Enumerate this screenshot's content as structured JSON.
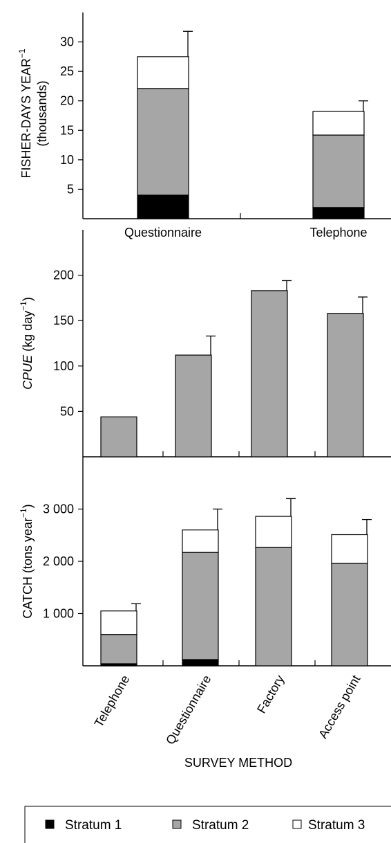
{
  "colors": {
    "stratum_1": "#000000",
    "stratum_2": "#a6a6a6",
    "stratum_3": "#ffffff"
  },
  "xaxis_title": "SURVEY METHOD",
  "legend": [
    "Stratum 1",
    "Stratum 2",
    "Stratum 3"
  ],
  "chart_data": [
    {
      "type": "bar",
      "stacked": true,
      "ylabel": "FISHER-DAYS YEAR",
      "ylabel_superscript": "−1",
      "ylabel_sub": "(thousands)",
      "ylim": [
        0,
        35
      ],
      "yticks": [
        5,
        10,
        15,
        20,
        25,
        30
      ],
      "ytick_labels": [
        "5",
        "10",
        "15",
        "20",
        "25",
        "30"
      ],
      "categories": [
        "Questionnaire",
        "Telephone"
      ],
      "series": [
        {
          "name": "Stratum 1",
          "values": [
            4.0,
            1.9
          ]
        },
        {
          "name": "Stratum 2",
          "values": [
            18.1,
            12.3
          ]
        },
        {
          "name": "Stratum 3",
          "values": [
            5.4,
            4.0
          ]
        }
      ],
      "error_upper": [
        31.8,
        20.0
      ]
    },
    {
      "type": "bar",
      "stacked": false,
      "ylabel": "CPUE",
      "ylabel_unit": "(kg day",
      "ylabel_superscript": "−1",
      "ylabel_close": ")",
      "ylim": [
        0,
        250
      ],
      "yticks": [
        50,
        100,
        150,
        200
      ],
      "ytick_labels": [
        "50",
        "100",
        "150",
        "200"
      ],
      "categories": [
        "Telephone",
        "Questionnaire",
        "Factory",
        "Access point"
      ],
      "series": [
        {
          "name": "Stratum 2",
          "values": [
            44,
            112,
            183,
            158
          ]
        }
      ],
      "error_upper": [
        null,
        133,
        194,
        176
      ]
    },
    {
      "type": "bar",
      "stacked": true,
      "ylabel": "CATCH (tons year",
      "ylabel_superscript": "−1",
      "ylabel_close": ")",
      "ylim": [
        0,
        4000
      ],
      "yticks": [
        1000,
        2000,
        3000
      ],
      "ytick_labels": [
        "1 000",
        "2 000",
        "3 000"
      ],
      "categories": [
        "Telephone",
        "Questionnaire",
        "Factory",
        "Access point"
      ],
      "series": [
        {
          "name": "Stratum 1",
          "values": [
            40,
            120,
            0,
            0
          ]
        },
        {
          "name": "Stratum 2",
          "values": [
            560,
            2050,
            2270,
            1960
          ]
        },
        {
          "name": "Stratum 3",
          "values": [
            450,
            430,
            590,
            550
          ]
        }
      ],
      "error_upper": [
        1190,
        3000,
        3200,
        2800
      ]
    }
  ]
}
